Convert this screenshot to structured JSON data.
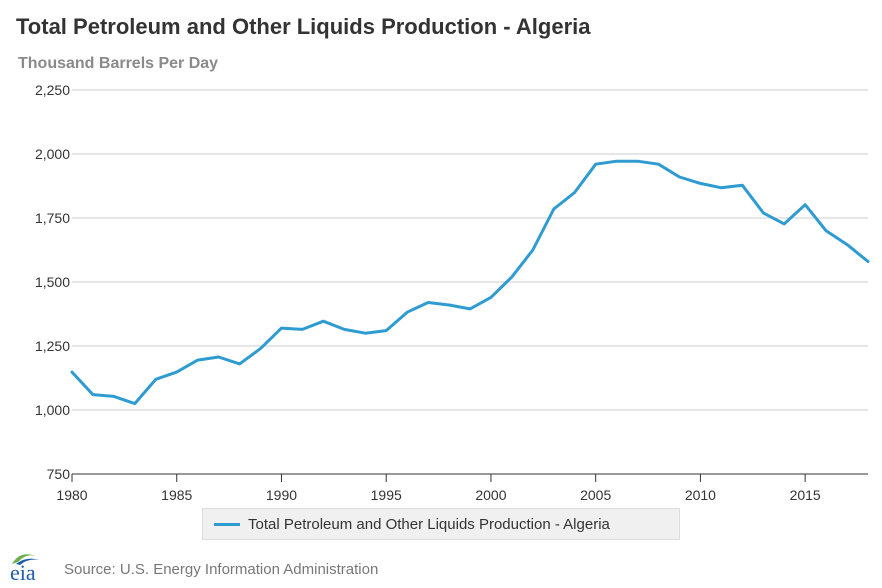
{
  "header": {
    "title": "Total Petroleum and Other Liquids Production - Algeria",
    "subtitle": "Thousand Barrels Per Day"
  },
  "legend": {
    "label": "Total Petroleum and Other Liquids Production - Algeria"
  },
  "footer": {
    "source": "Source: U.S. Energy Information Administration",
    "logo_text": "eia"
  },
  "colors": {
    "series": "#2e9bd1",
    "grid": "#cccccc",
    "axis": "#333333",
    "logo_green": "#6ab04c",
    "logo_blue": "#1f5ca8"
  },
  "chart_data": {
    "type": "line",
    "title": "Total Petroleum and Other Liquids Production - Algeria",
    "ylabel": "Thousand Barrels Per Day",
    "xlabel": "",
    "xlim": [
      1980,
      2018
    ],
    "ylim": [
      750,
      2250
    ],
    "xticks": [
      1980,
      1985,
      1990,
      1995,
      2000,
      2005,
      2010,
      2015
    ],
    "xtick_labels": [
      "1980",
      "1985",
      "1990",
      "1995",
      "2000",
      "2005",
      "2010",
      "2015"
    ],
    "yticks": [
      750,
      1000,
      1250,
      1500,
      1750,
      2000,
      2250
    ],
    "ytick_labels": [
      "750",
      "1,000",
      "1,250",
      "1,500",
      "1,750",
      "2,000",
      "2,250"
    ],
    "grid": true,
    "legend_position": "bottom",
    "series": [
      {
        "name": "Total Petroleum and Other Liquids Production - Algeria",
        "x": [
          1980,
          1981,
          1982,
          1983,
          1984,
          1985,
          1986,
          1987,
          1988,
          1989,
          1990,
          1991,
          1992,
          1993,
          1994,
          1995,
          1996,
          1997,
          1998,
          1999,
          2000,
          2001,
          2002,
          2003,
          2004,
          2005,
          2006,
          2007,
          2008,
          2009,
          2010,
          2011,
          2012,
          2013,
          2014,
          2015,
          2016,
          2017,
          2018
        ],
        "values": [
          1148,
          1060,
          1053,
          1025,
          1120,
          1148,
          1195,
          1207,
          1180,
          1240,
          1320,
          1315,
          1347,
          1315,
          1300,
          1310,
          1382,
          1420,
          1410,
          1395,
          1440,
          1520,
          1625,
          1785,
          1850,
          1960,
          1972,
          1972,
          1960,
          1910,
          1885,
          1868,
          1878,
          1770,
          1727,
          1802,
          1700,
          1646,
          1580
        ]
      }
    ]
  }
}
